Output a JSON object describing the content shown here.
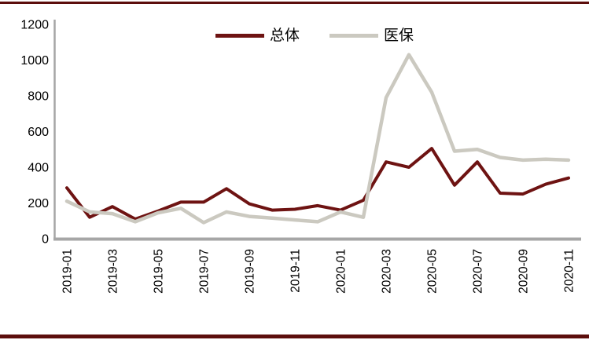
{
  "frame": {
    "top_rule_color": "#5c0e0c",
    "bottom_rule_color": "#5c0e0c",
    "background": "#ffffff"
  },
  "chart_data": {
    "type": "line",
    "title": "",
    "xlabel": "",
    "ylabel": "",
    "x": [
      "2019-01",
      "2019-02",
      "2019-03",
      "2019-04",
      "2019-05",
      "2019-06",
      "2019-07",
      "2019-08",
      "2019-09",
      "2019-10",
      "2019-11",
      "2019-12",
      "2020-01",
      "2020-02",
      "2020-03",
      "2020-04",
      "2020-05",
      "2020-06",
      "2020-07",
      "2020-08",
      "2020-09",
      "2020-10",
      "2020-11"
    ],
    "x_ticks_shown": [
      "2019-01",
      "2019-03",
      "2019-05",
      "2019-07",
      "2019-09",
      "2019-11",
      "2020-01",
      "2020-03",
      "2020-05",
      "2020-07",
      "2020-09",
      "2020-11"
    ],
    "series": [
      {
        "name": "总体",
        "color": "#6e1312",
        "stroke_width": 4,
        "values": [
          285,
          120,
          180,
          110,
          155,
          205,
          205,
          280,
          195,
          160,
          165,
          185,
          160,
          215,
          430,
          400,
          505,
          300,
          430,
          255,
          250,
          305,
          340
        ]
      },
      {
        "name": "医保",
        "color": "#cbc9c0",
        "stroke_width": 4.5,
        "values": [
          210,
          150,
          140,
          95,
          145,
          170,
          90,
          150,
          125,
          115,
          105,
          95,
          150,
          120,
          790,
          1030,
          820,
          490,
          500,
          455,
          440,
          445,
          440
        ]
      }
    ],
    "ylim": [
      0,
      1200
    ],
    "yticks": [
      0,
      200,
      400,
      600,
      800,
      1000,
      1200
    ],
    "grid": false,
    "legend_position": "top-center",
    "axis_color": "#a6a6a6",
    "text_color": "#000000"
  }
}
